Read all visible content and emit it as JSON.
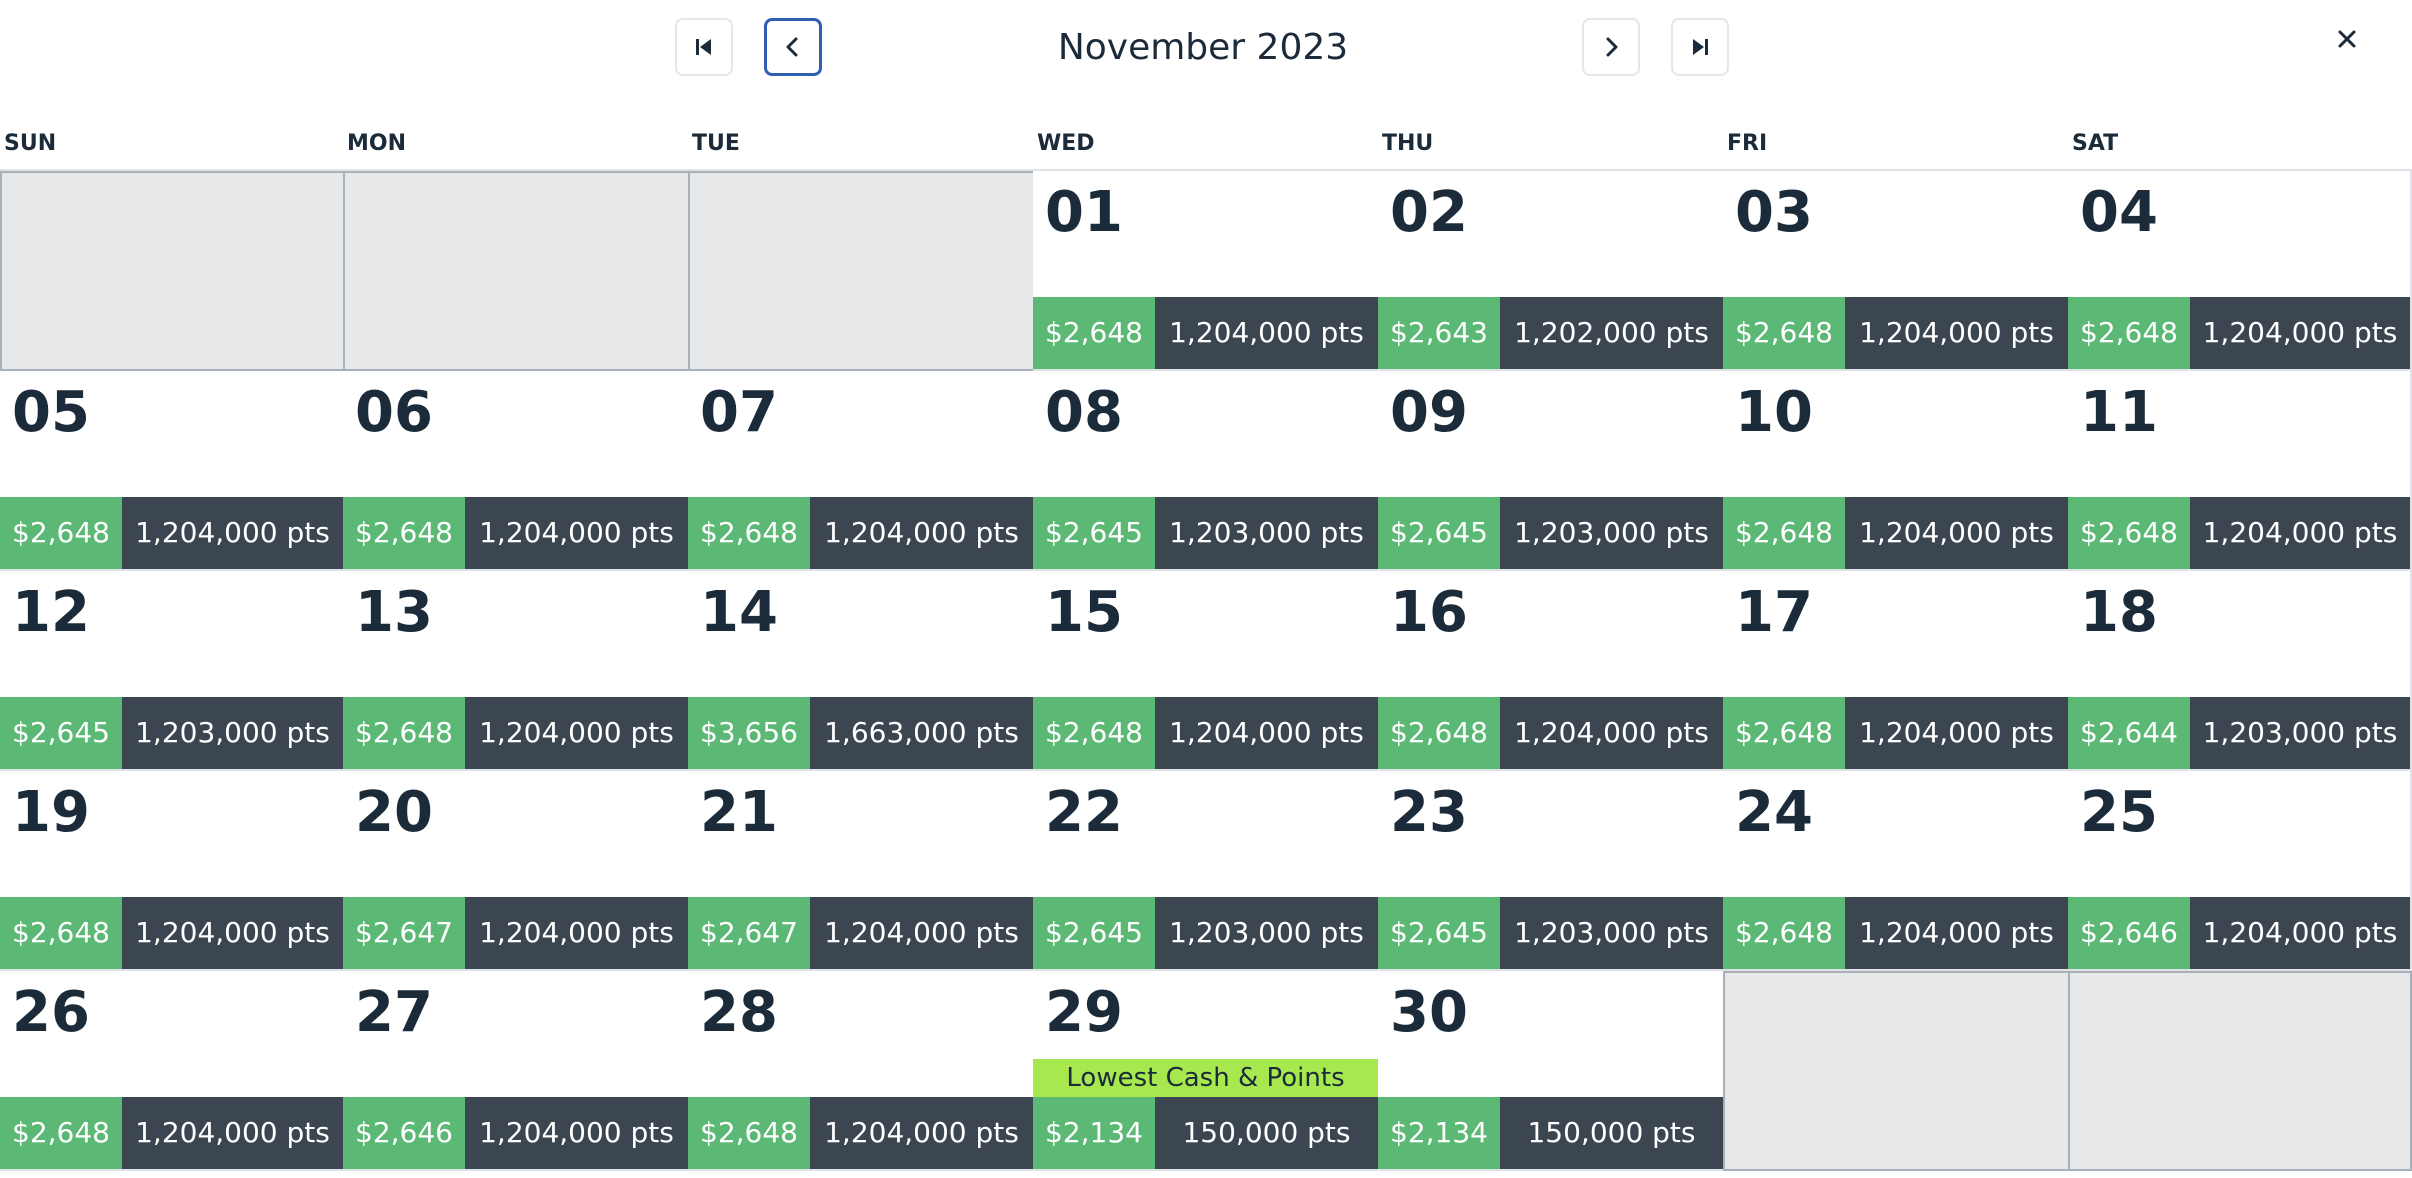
{
  "header": {
    "month_title": "November 2023",
    "nav": {
      "first_icon": "skip-back-icon",
      "prev_icon": "chevron-left-icon",
      "next_icon": "chevron-right-icon",
      "last_icon": "skip-forward-icon",
      "close_icon": "close-icon"
    }
  },
  "weekdays": [
    "SUN",
    "MON",
    "TUE",
    "WED",
    "THU",
    "FRI",
    "SAT"
  ],
  "leading_empty_days": 3,
  "trailing_empty_days": 2,
  "days": [
    {
      "day": "01",
      "cash": "$2,648",
      "points": "1,204,000 pts"
    },
    {
      "day": "02",
      "cash": "$2,643",
      "points": "1,202,000 pts"
    },
    {
      "day": "03",
      "cash": "$2,648",
      "points": "1,204,000 pts"
    },
    {
      "day": "04",
      "cash": "$2,648",
      "points": "1,204,000 pts"
    },
    {
      "day": "05",
      "cash": "$2,648",
      "points": "1,204,000 pts"
    },
    {
      "day": "06",
      "cash": "$2,648",
      "points": "1,204,000 pts"
    },
    {
      "day": "07",
      "cash": "$2,648",
      "points": "1,204,000 pts"
    },
    {
      "day": "08",
      "cash": "$2,645",
      "points": "1,203,000 pts"
    },
    {
      "day": "09",
      "cash": "$2,645",
      "points": "1,203,000 pts"
    },
    {
      "day": "10",
      "cash": "$2,648",
      "points": "1,204,000 pts"
    },
    {
      "day": "11",
      "cash": "$2,648",
      "points": "1,204,000 pts"
    },
    {
      "day": "12",
      "cash": "$2,645",
      "points": "1,203,000 pts"
    },
    {
      "day": "13",
      "cash": "$2,648",
      "points": "1,204,000 pts"
    },
    {
      "day": "14",
      "cash": "$3,656",
      "points": "1,663,000 pts"
    },
    {
      "day": "15",
      "cash": "$2,648",
      "points": "1,204,000 pts"
    },
    {
      "day": "16",
      "cash": "$2,648",
      "points": "1,204,000 pts"
    },
    {
      "day": "17",
      "cash": "$2,648",
      "points": "1,204,000 pts"
    },
    {
      "day": "18",
      "cash": "$2,644",
      "points": "1,203,000 pts"
    },
    {
      "day": "19",
      "cash": "$2,648",
      "points": "1,204,000 pts"
    },
    {
      "day": "20",
      "cash": "$2,647",
      "points": "1,204,000 pts"
    },
    {
      "day": "21",
      "cash": "$2,647",
      "points": "1,204,000 pts"
    },
    {
      "day": "22",
      "cash": "$2,645",
      "points": "1,203,000 pts"
    },
    {
      "day": "23",
      "cash": "$2,645",
      "points": "1,203,000 pts"
    },
    {
      "day": "24",
      "cash": "$2,648",
      "points": "1,204,000 pts"
    },
    {
      "day": "25",
      "cash": "$2,646",
      "points": "1,204,000 pts"
    },
    {
      "day": "26",
      "cash": "$2,648",
      "points": "1,204,000 pts"
    },
    {
      "day": "27",
      "cash": "$2,646",
      "points": "1,204,000 pts"
    },
    {
      "day": "28",
      "cash": "$2,648",
      "points": "1,204,000 pts"
    },
    {
      "day": "29",
      "cash": "$2,134",
      "points": "150,000 pts",
      "badge": "Lowest Cash & Points"
    },
    {
      "day": "30",
      "cash": "$2,134",
      "points": "150,000 pts"
    }
  ],
  "colors": {
    "cash_bg": "#5cb975",
    "points_bg": "#3b4651",
    "badge_bg": "#a6e84e",
    "focus_border": "#2f5fb3",
    "empty_cell_bg": "#e7e8ea"
  }
}
